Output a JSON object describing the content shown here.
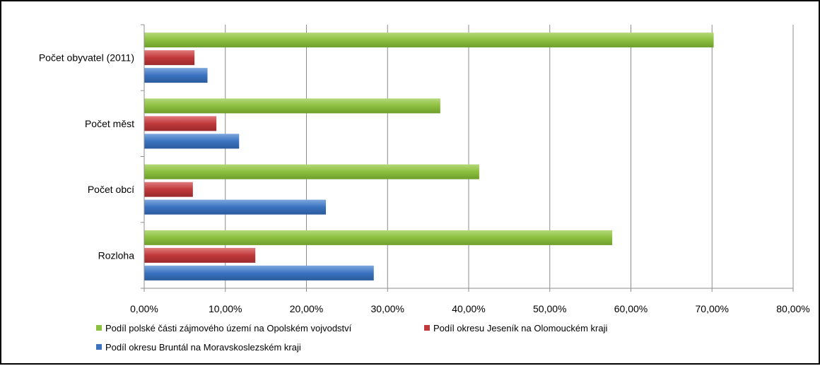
{
  "chart_data": {
    "type": "bar",
    "orientation": "horizontal",
    "categories": [
      "Počet obyvatel (2011)",
      "Počet měst",
      "Počet obcí",
      "Rozloha"
    ],
    "series": [
      {
        "name": "Podíl polské části zájmového území na Opolském vojvodství",
        "color": "#8cbf3f",
        "values": [
          70.2,
          36.5,
          41.3,
          57.7
        ]
      },
      {
        "name": "Podíl okresu Jeseník na Olomouckém kraji",
        "color": "#c0393b",
        "values": [
          6.2,
          8.9,
          6.0,
          13.7
        ]
      },
      {
        "name": "Podíl okresu Bruntál na Moravskoslezském kraji",
        "color": "#3b73c0",
        "values": [
          7.8,
          11.7,
          22.4,
          28.3
        ]
      }
    ],
    "xlim": [
      0,
      80
    ],
    "x_ticks": [
      "0,00%",
      "10,00%",
      "20,00%",
      "30,00%",
      "40,00%",
      "50,00%",
      "60,00%",
      "70,00%",
      "80,00%"
    ],
    "grid": true,
    "legend_position": "bottom"
  }
}
